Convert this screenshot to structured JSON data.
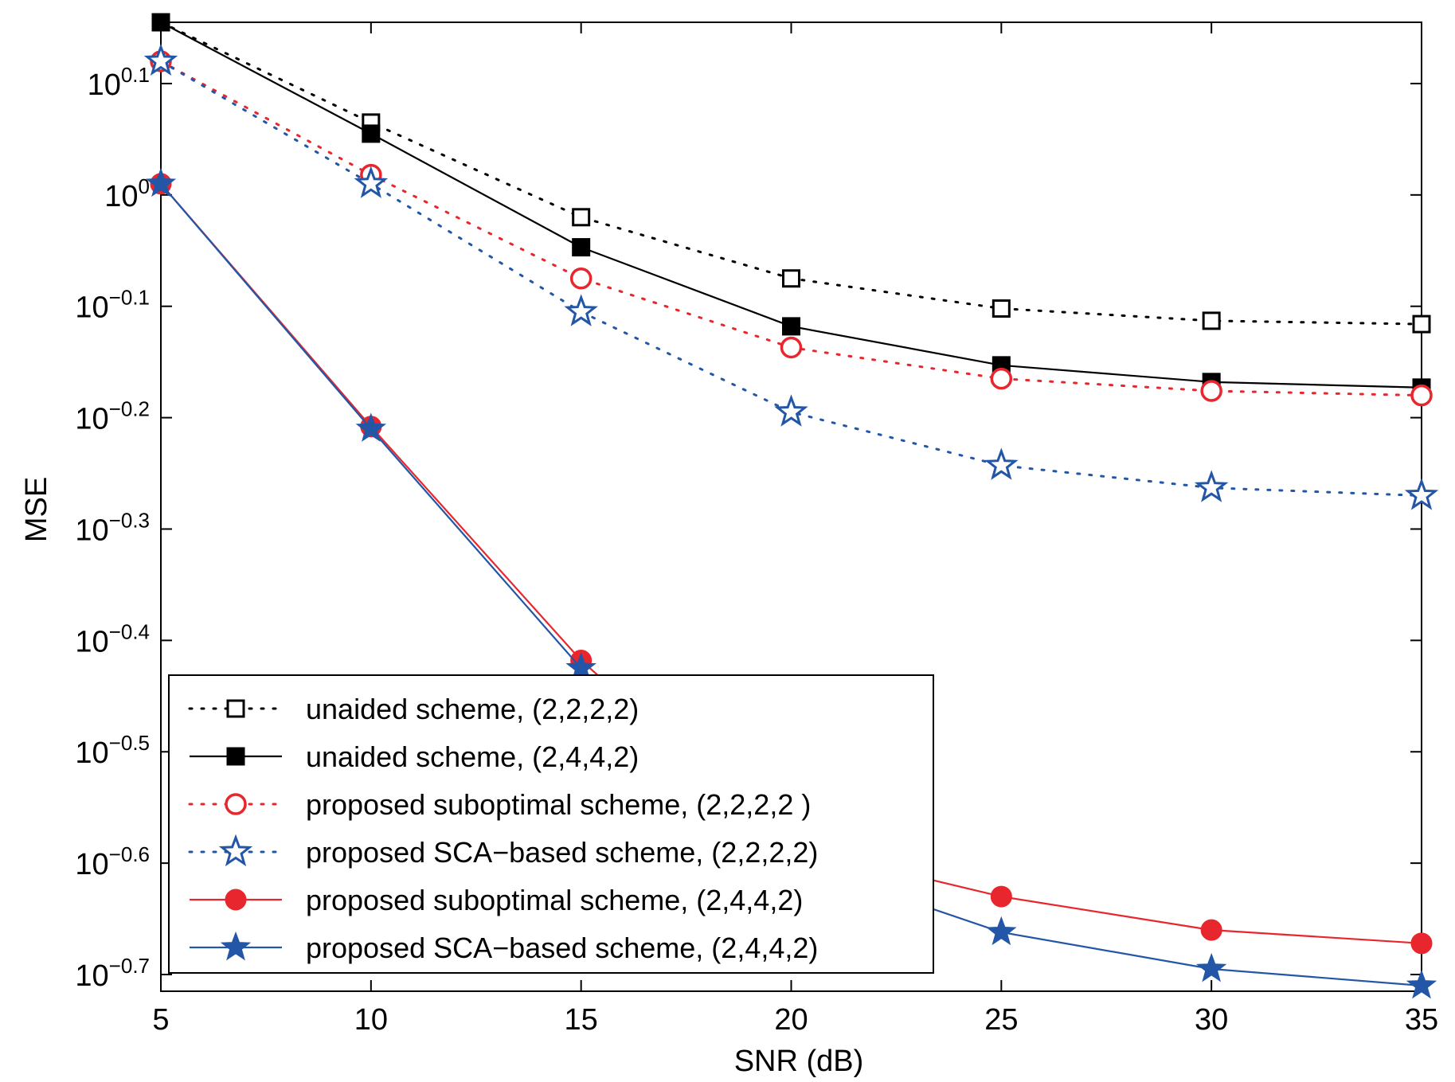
{
  "chart_data": {
    "type": "line",
    "title": "",
    "xlabel": "SNR (dB)",
    "ylabel": "MSE",
    "x": [
      5,
      10,
      15,
      20,
      25,
      30,
      35
    ],
    "xlim": [
      5,
      35
    ],
    "xticks": [
      "5",
      "10",
      "15",
      "20",
      "25",
      "30",
      "35"
    ],
    "ylog": true,
    "ylim_exponent": [
      -0.71,
      0.155
    ],
    "yticks": [
      {
        "base": "10",
        "exp": "0.1",
        "value": 0.1
      },
      {
        "base": "10",
        "exp": "0",
        "value": 0
      },
      {
        "base": "10",
        "exp": "−0.1",
        "value": -0.1
      },
      {
        "base": "10",
        "exp": "−0.2",
        "value": -0.2
      },
      {
        "base": "10",
        "exp": "−0.3",
        "value": -0.3
      },
      {
        "base": "10",
        "exp": "−0.4",
        "value": -0.4
      },
      {
        "base": "10",
        "exp": "−0.5",
        "value": -0.5
      },
      {
        "base": "10",
        "exp": "−0.6",
        "value": -0.6
      },
      {
        "base": "10",
        "exp": "−0.7",
        "value": -0.7
      }
    ],
    "grid": false,
    "legend_position": "bottom-left",
    "series": [
      {
        "name": "unaided scheme, (2,2,2,2)",
        "color": "#000000",
        "line": "dotted",
        "marker": "square-open",
        "y_exponent": [
          0.155,
          0.065,
          -0.02,
          -0.075,
          -0.102,
          -0.113,
          -0.116
        ]
      },
      {
        "name": "unaided scheme, (2,4,4,2)",
        "color": "#000000",
        "line": "solid",
        "marker": "square-filled",
        "y_exponent": [
          0.155,
          0.055,
          -0.047,
          -0.118,
          -0.153,
          -0.168,
          -0.173
        ]
      },
      {
        "name": "proposed suboptimal scheme, (2,2,2,2 )",
        "color": "#e8262d",
        "line": "dotted",
        "marker": "circle-open",
        "y_exponent": [
          0.12,
          0.018,
          -0.075,
          -0.137,
          -0.165,
          -0.176,
          -0.18
        ]
      },
      {
        "name": "proposed SCA−based scheme, (2,2,2,2)",
        "color": "#2356a6",
        "line": "dotted",
        "marker": "star-open",
        "y_exponent": [
          0.12,
          0.01,
          -0.105,
          -0.195,
          -0.243,
          -0.263,
          -0.27
        ]
      },
      {
        "name": "proposed suboptimal scheme, (2,4,4,2)",
        "color": "#e8262d",
        "line": "solid",
        "marker": "circle-filled",
        "y_exponent": [
          0.01,
          -0.208,
          -0.418,
          -0.585,
          -0.63,
          -0.66,
          -0.672
        ]
      },
      {
        "name": "proposed SCA−based scheme, (2,4,4,2)",
        "color": "#2356a6",
        "line": "solid",
        "marker": "star-filled",
        "y_exponent": [
          0.01,
          -0.21,
          -0.425,
          -0.598,
          -0.662,
          -0.695,
          -0.71
        ]
      }
    ]
  }
}
